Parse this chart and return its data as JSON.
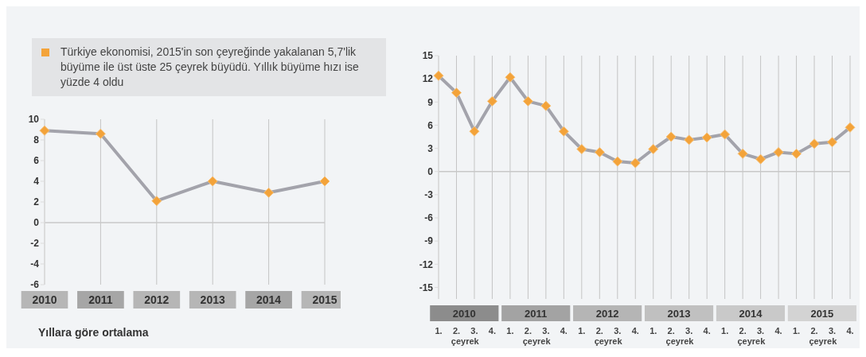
{
  "chart_data": [
    {
      "type": "line",
      "categories": [
        "2010",
        "2011",
        "2012",
        "2013",
        "2014",
        "2015"
      ],
      "series": [
        {
          "color": "#a3a3ab",
          "values": [
            8.9,
            8.6,
            2.1,
            4.0,
            2.9,
            4.0
          ]
        }
      ],
      "ylim": [
        -6,
        10
      ],
      "yticks": [
        -6,
        -4,
        -2,
        0,
        2,
        4,
        6,
        8,
        10
      ],
      "grid": "x",
      "marker": "diamond",
      "ref_lines": [
        {
          "axis": "y",
          "value": 0
        }
      ],
      "xlabel": "Yıllara göre ortalama",
      "annotations": [
        "Türkiye ekonomisi, 2015'in son çeyreğinde yakalanan 5,7'lik büyüme ile üst üste 25 çeyrek büyüdü. Yıllık büyüme hızı ise yüzde 4 oldu"
      ]
    },
    {
      "type": "line",
      "categories": [
        "1.",
        "2.",
        "3.",
        "4.",
        "1.",
        "2.",
        "3.",
        "4.",
        "1.",
        "2.",
        "3.",
        "4.",
        "1.",
        "2.",
        "3.",
        "4.",
        "1.",
        "2.",
        "3.",
        "4.",
        "1.",
        "2.",
        "3.",
        "4."
      ],
      "series": [
        {
          "color": "#a3a3ab",
          "values": [
            12.4,
            10.2,
            5.2,
            9.1,
            12.2,
            9.1,
            8.5,
            5.2,
            2.9,
            2.5,
            1.3,
            1.1,
            2.9,
            4.5,
            4.1,
            4.4,
            4.8,
            2.3,
            1.6,
            2.5,
            2.3,
            3.6,
            3.8,
            5.7
          ]
        }
      ],
      "ylim": [
        -16.5,
        15
      ],
      "yticks": [
        -15,
        -12,
        -9,
        -6,
        -3,
        0,
        3,
        6,
        9,
        12,
        15
      ],
      "grid": "x",
      "marker": "diamond",
      "ref_lines": [
        {
          "axis": "y",
          "value": 0
        }
      ],
      "annotations": [
        "2010",
        "2011",
        "2012",
        "2013",
        "2014",
        "2015",
        "çeyrek",
        "çeyrek",
        "çeyrek",
        "çeyrek",
        "çeyrek",
        "çeyrek"
      ]
    }
  ]
}
